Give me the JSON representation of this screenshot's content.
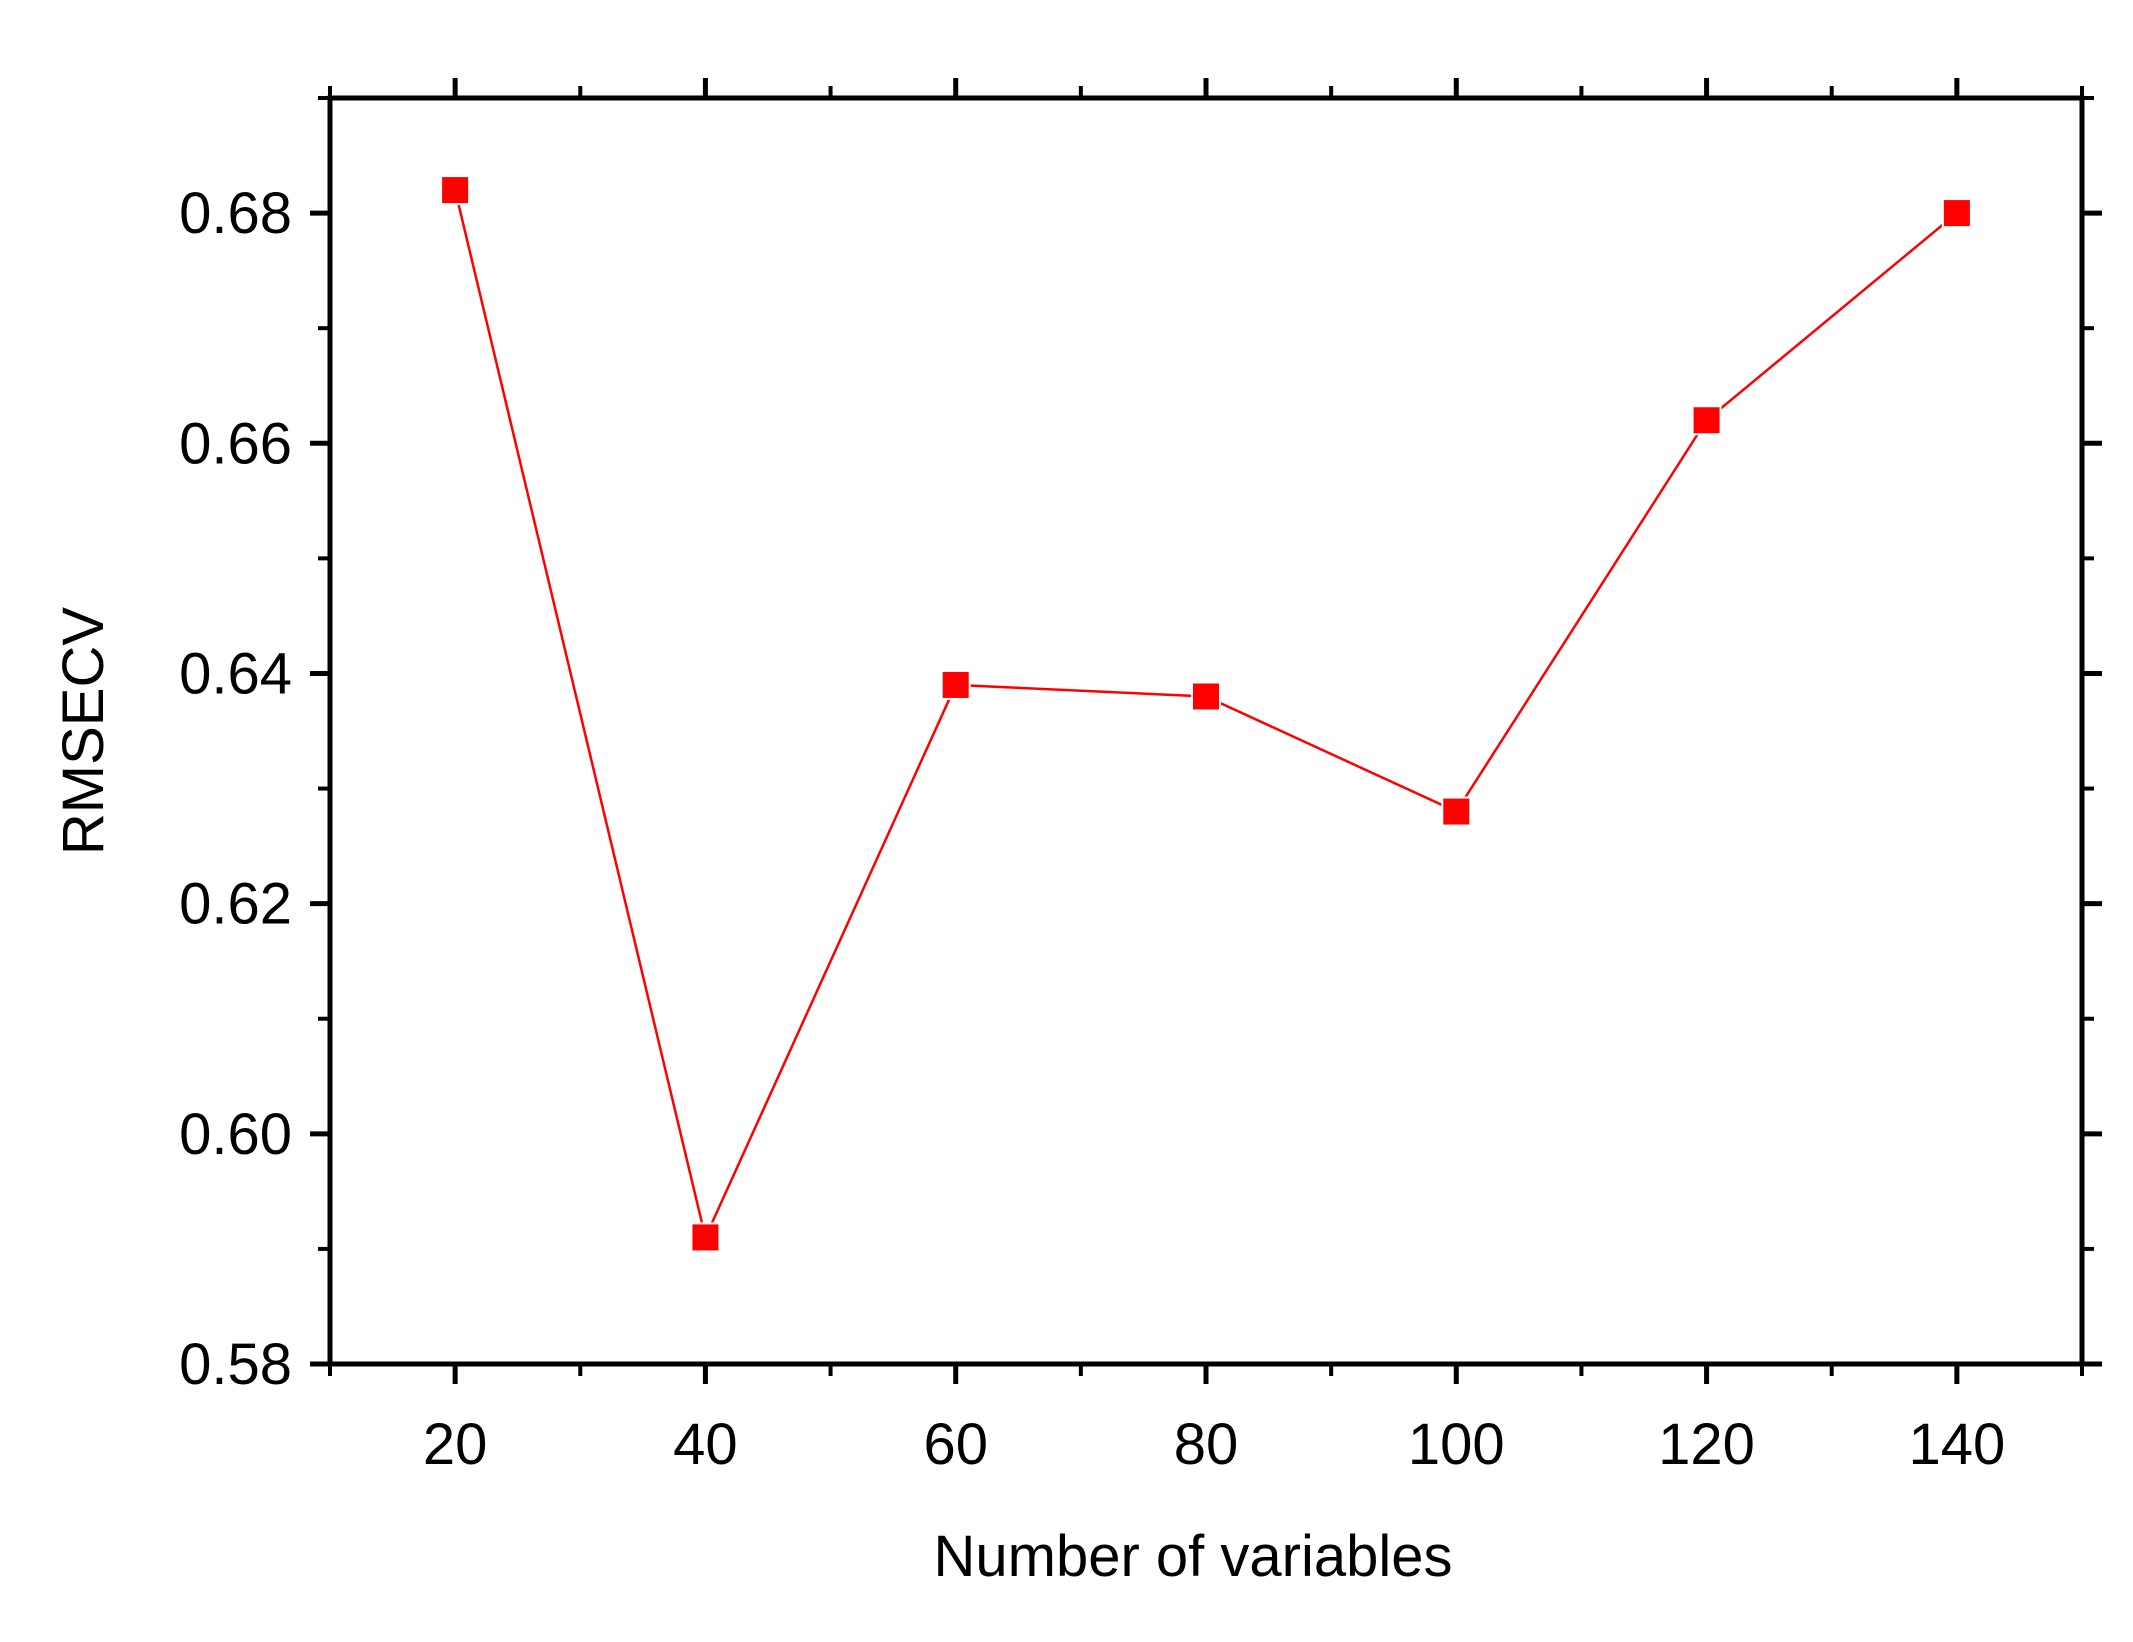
{
  "chart_data": {
    "type": "line",
    "title": "",
    "xlabel": "Number of variables",
    "ylabel": "RMSECV",
    "xlim": [
      10,
      150
    ],
    "ylim": [
      0.58,
      0.69
    ],
    "x_ticks": [
      20,
      40,
      60,
      80,
      100,
      120,
      140
    ],
    "x_tick_labels": [
      "20",
      "40",
      "60",
      "80",
      "100",
      "120",
      "140"
    ],
    "y_ticks": [
      0.58,
      0.6,
      0.62,
      0.64,
      0.66,
      0.68
    ],
    "y_tick_labels": [
      "0.58",
      "0.60",
      "0.62",
      "0.64",
      "0.66",
      "0.68"
    ],
    "grid": false,
    "series": [
      {
        "color": "#ff0000",
        "marker": "square",
        "x": [
          20,
          40,
          60,
          80,
          100,
          120,
          140
        ],
        "y": [
          0.682,
          0.591,
          0.639,
          0.638,
          0.628,
          0.662,
          0.68
        ]
      }
    ]
  }
}
